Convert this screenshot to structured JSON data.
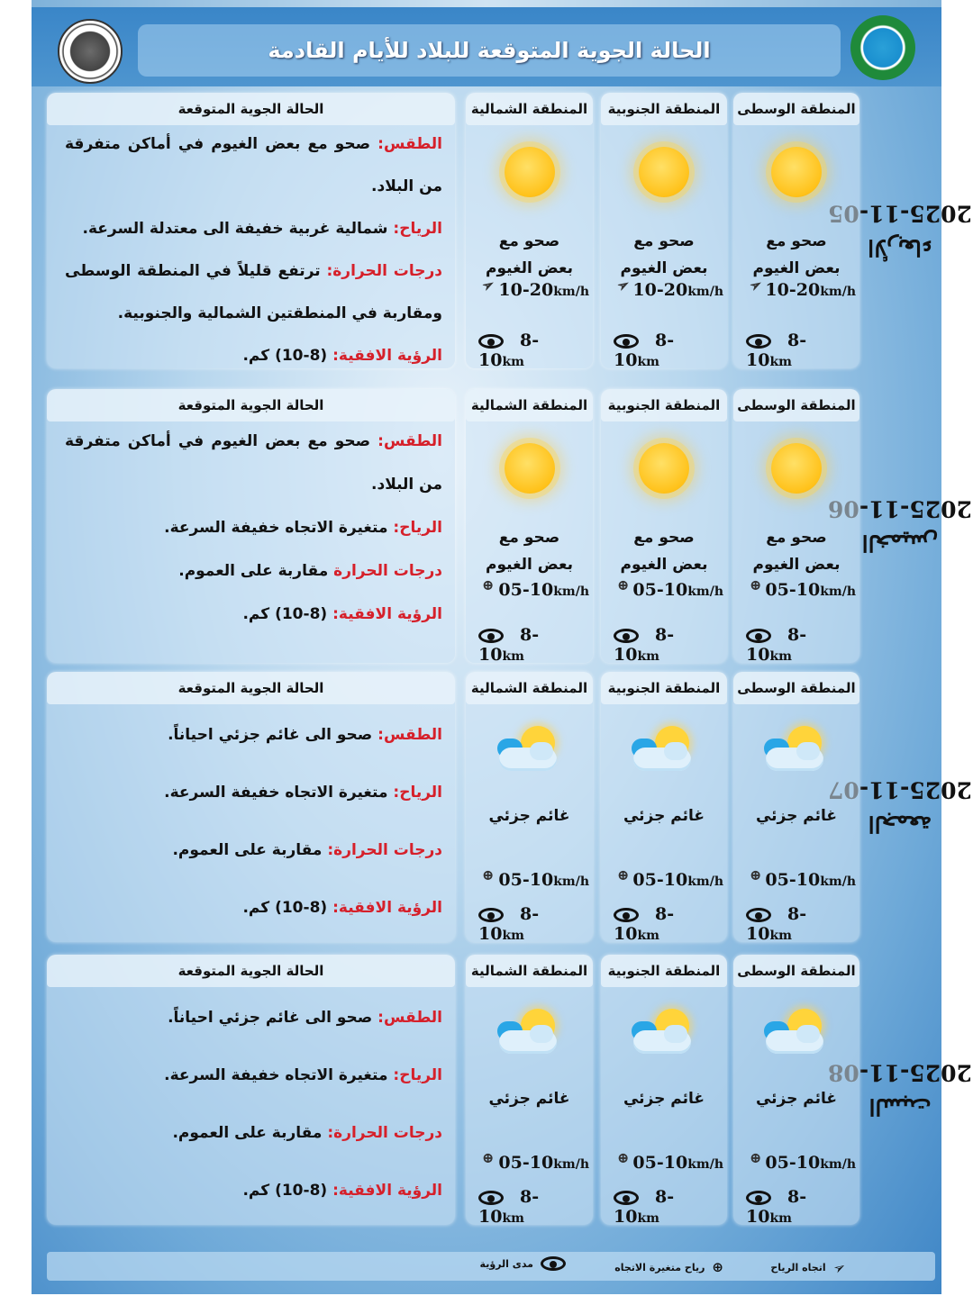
{
  "header": {
    "title": "الحالة الجوية المتوقعة للبلاد للأيام القادمة"
  },
  "details_title": "الحالة الجوية المتوقعة",
  "regions": [
    "المنطقة الوسطى",
    "المنطقة الجنوبية",
    "المنطقة الشمالية"
  ],
  "days": [
    {
      "day": "الأربعاء",
      "date": "2025-11-05",
      "cards": [
        {
          "icon": "sunny-icon",
          "condition": "صحو مع بعض الغيوم",
          "wind_icon": "wind-direction-arrow-icon",
          "wind": "10-20",
          "wind_unit": "km/h",
          "visibility": "8-10",
          "vis_unit": "km"
        },
        {
          "icon": "sunny-icon",
          "condition": "صحو مع بعض الغيوم",
          "wind_icon": "wind-direction-arrow-icon",
          "wind": "10-20",
          "wind_unit": "km/h",
          "visibility": "8-10",
          "vis_unit": "km"
        },
        {
          "icon": "sunny-icon",
          "condition": "صحو مع بعض الغيوم",
          "wind_icon": "wind-direction-arrow-icon",
          "wind": "10-20",
          "wind_unit": "km/h",
          "visibility": "8-10",
          "vis_unit": "km"
        }
      ],
      "details": [
        {
          "label": "الطقس:",
          "text": "صحو مع بعض الغيوم في أماكن متفرقة من البلاد."
        },
        {
          "label": "الرياح:",
          "text": "شمالية غربية خفيفة الى معتدلة السرعة."
        },
        {
          "label": "درجات الحرارة:",
          "text": "ترتفع قليلاً في المنطقة الوسطى ومقاربة في المنطقتين الشمالية والجنوبية."
        },
        {
          "label": "الرؤية الافقية:",
          "text": "(8-10) كم."
        }
      ]
    },
    {
      "day": "الخميس",
      "date": "2025-11-06",
      "cards": [
        {
          "icon": "sunny-icon",
          "condition": "صحو مع بعض الغيوم",
          "wind_icon": "variable-wind-icon",
          "wind": "05-10",
          "wind_unit": "km/h",
          "visibility": "8-10",
          "vis_unit": "km"
        },
        {
          "icon": "sunny-icon",
          "condition": "صحو مع بعض الغيوم",
          "wind_icon": "variable-wind-icon",
          "wind": "05-10",
          "wind_unit": "km/h",
          "visibility": "8-10",
          "vis_unit": "km"
        },
        {
          "icon": "sunny-icon",
          "condition": "صحو مع بعض الغيوم",
          "wind_icon": "variable-wind-icon",
          "wind": "05-10",
          "wind_unit": "km/h",
          "visibility": "8-10",
          "vis_unit": "km"
        }
      ],
      "details": [
        {
          "label": "الطقس:",
          "text": "صحو مع بعض الغيوم في أماكن متفرقة من البلاد."
        },
        {
          "label": "الرياح:",
          "text": "متغيرة الاتجاه خفيفة السرعة."
        },
        {
          "label": "درجات الحرارة",
          "text": "مقاربة على العموم."
        },
        {
          "label": "الرؤية الافقية:",
          "text": "(8-10) كم."
        }
      ]
    },
    {
      "day": "الجمعة",
      "date": "2025-11-07",
      "cards": [
        {
          "icon": "partly-cloudy-icon",
          "condition": "غائم جزئي",
          "wind_icon": "variable-wind-icon",
          "wind": "05-10",
          "wind_unit": "km/h",
          "visibility": "8-10",
          "vis_unit": "km"
        },
        {
          "icon": "partly-cloudy-icon",
          "condition": "غائم جزئي",
          "wind_icon": "variable-wind-icon",
          "wind": "05-10",
          "wind_unit": "km/h",
          "visibility": "8-10",
          "vis_unit": "km"
        },
        {
          "icon": "partly-cloudy-icon",
          "condition": "غائم جزئي",
          "wind_icon": "variable-wind-icon",
          "wind": "05-10",
          "wind_unit": "km/h",
          "visibility": "8-10",
          "vis_unit": "km"
        }
      ],
      "details": [
        {
          "label": "الطقس:",
          "text": "صحو الى غائم جزئي احياناً."
        },
        {
          "label": "الرياح:",
          "text": "متغيرة الاتجاه خفيفة السرعة."
        },
        {
          "label": "درجات الحرارة:",
          "text": "مقاربة على العموم."
        },
        {
          "label": "الرؤية الافقية:",
          "text": "(8-10) كم."
        }
      ]
    },
    {
      "day": "السبت",
      "date": "2025-11-08",
      "cards": [
        {
          "icon": "partly-cloudy-icon",
          "condition": "غائم جزئي",
          "wind_icon": "variable-wind-icon",
          "wind": "05-10",
          "wind_unit": "km/h",
          "visibility": "8-10",
          "vis_unit": "km"
        },
        {
          "icon": "partly-cloudy-icon",
          "condition": "غائم جزئي",
          "wind_icon": "variable-wind-icon",
          "wind": "05-10",
          "wind_unit": "km/h",
          "visibility": "8-10",
          "vis_unit": "km"
        },
        {
          "icon": "partly-cloudy-icon",
          "condition": "غائم جزئي",
          "wind_icon": "variable-wind-icon",
          "wind": "05-10",
          "wind_unit": "km/h",
          "visibility": "8-10",
          "vis_unit": "km"
        }
      ],
      "details": [
        {
          "label": "الطقس:",
          "text": "صحو الى غائم جزئي احياناً."
        },
        {
          "label": "الرياح:",
          "text": "متغيرة الاتجاه خفيفة السرعة."
        },
        {
          "label": "درجات الحرارة:",
          "text": "مقاربة على العموم."
        },
        {
          "label": "الرؤية الافقية:",
          "text": "(8-10) كم."
        }
      ]
    }
  ],
  "legend": {
    "wind_direction": "اتجاه الرياح",
    "variable_wind": "رياح متغيرة الاتجاه",
    "visibility": "مدى الرؤية"
  },
  "colors": {
    "label_red": "#d6202a",
    "header_blue": "#3a86c8",
    "sun": "#ffc21a"
  }
}
